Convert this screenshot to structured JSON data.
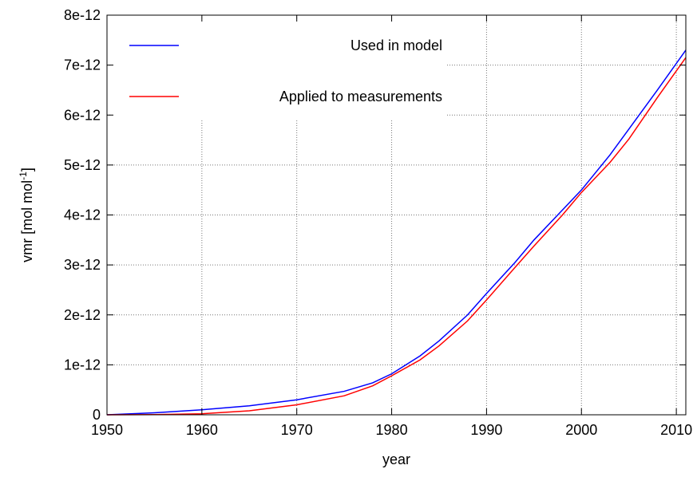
{
  "chart_data": {
    "type": "line",
    "x_label": "year",
    "y_label": {
      "text": "vmr [mol mol",
      "superscript": "-1",
      "suffix": "]"
    },
    "x": [
      1950,
      1955,
      1960,
      1965,
      1970,
      1975,
      1978,
      1980,
      1983,
      1985,
      1988,
      1990,
      1993,
      1995,
      1998,
      2000,
      2003,
      2005,
      2008,
      2011
    ],
    "series": [
      {
        "name": "Used in model",
        "color": "#0000ff",
        "values": [
          0,
          4e-14,
          1e-13,
          1.8e-13,
          3e-13,
          4.7e-13,
          6.4e-13,
          8.2e-13,
          1.18e-12,
          1.48e-12,
          2e-12,
          2.43e-12,
          3.05e-12,
          3.5e-12,
          4.1e-12,
          4.5e-12,
          5.2e-12,
          5.72e-12,
          6.5e-12,
          7.3e-12
        ]
      },
      {
        "name": "Applied to measurements",
        "color": "#ff0000",
        "values": [
          0,
          5e-15,
          2e-14,
          8e-14,
          2e-13,
          3.8e-13,
          5.8e-13,
          7.8e-13,
          1.1e-12,
          1.38e-12,
          1.88e-12,
          2.3e-12,
          2.95e-12,
          3.38e-12,
          4e-12,
          4.45e-12,
          5.05e-12,
          5.52e-12,
          6.35e-12,
          7.15e-12
        ]
      }
    ],
    "xlim": [
      1950,
      2011
    ],
    "xticks": [
      1950,
      1960,
      1970,
      1980,
      1990,
      2000,
      2010
    ],
    "ylim": [
      0,
      8e-12
    ],
    "yticks": [
      0,
      {
        "value": 1e-12,
        "label": "1e-12"
      },
      {
        "value": 2e-12,
        "label": "2e-12"
      },
      {
        "value": 3e-12,
        "label": "3e-12"
      },
      {
        "value": 4e-12,
        "label": "4e-12"
      },
      {
        "value": 5e-12,
        "label": "5e-12"
      },
      {
        "value": 6e-12,
        "label": "6e-12"
      },
      {
        "value": 7e-12,
        "label": "7e-12"
      },
      {
        "value": 8e-12,
        "label": "8e-12"
      }
    ],
    "grid": true,
    "legend": "top-left"
  }
}
